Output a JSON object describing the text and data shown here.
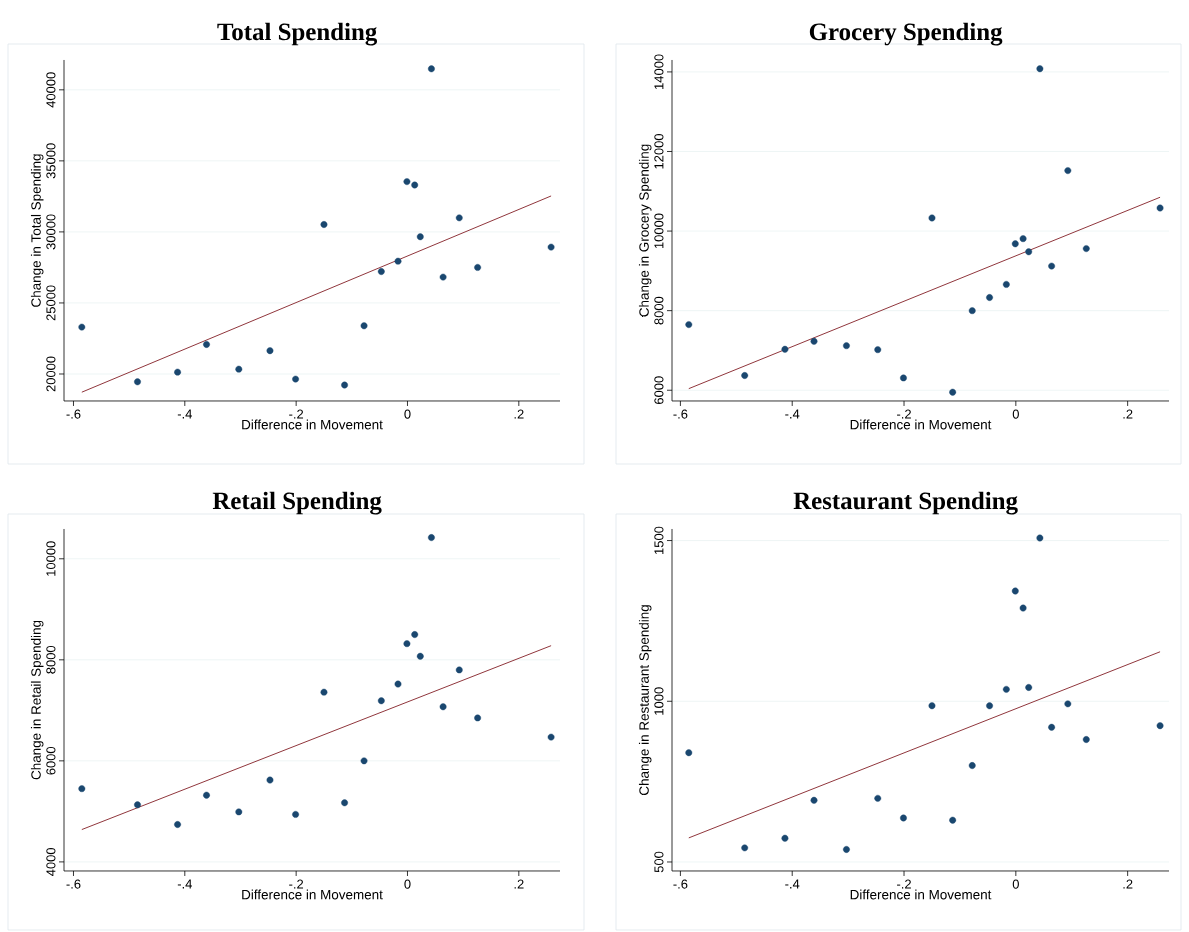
{
  "chart_data": [
    {
      "type": "scatter",
      "title": "Total Spending",
      "xlabel": "Difference in Movement",
      "ylabel": "Change in Total Spending",
      "xlim": [
        -0.617,
        0.274
      ],
      "ylim": [
        18100,
        42100
      ],
      "xticks": [
        {
          "value": -0.6,
          "label": "-.6"
        },
        {
          "value": -0.4,
          "label": "-.4"
        },
        {
          "value": -0.2,
          "label": "-.2"
        },
        0,
        {
          "value": 0.2,
          "label": ".2"
        }
      ],
      "yticks": [
        20000,
        25000,
        30000,
        35000,
        40000
      ],
      "grid": "y",
      "series": [
        {
          "marker": "circle",
          "color": "#1a476f",
          "x": [
            -0.585,
            -0.485,
            -0.413,
            -0.361,
            -0.303,
            -0.247,
            -0.201,
            -0.15,
            -0.113,
            -0.078,
            -0.047,
            -0.017,
            -0.001,
            0.013,
            0.023,
            0.043,
            0.064,
            0.093,
            0.126,
            0.258
          ],
          "values": [
            23300,
            19450,
            20130,
            22080,
            20340,
            21640,
            19640,
            30520,
            19220,
            23390,
            27210,
            27940,
            33540,
            33300,
            29660,
            41480,
            26820,
            30990,
            27500,
            28930
          ]
        },
        {
          "type": "line",
          "marker": "none",
          "color": "#90353b",
          "x": [
            -0.585,
            0.258
          ],
          "values": [
            18720,
            32530
          ]
        }
      ]
    },
    {
      "type": "scatter",
      "title": "Grocery Spending",
      "xlabel": "Difference in Movement",
      "ylabel": "Change in Grocery Spending",
      "xlim": [
        -0.615,
        0.274
      ],
      "ylim": [
        5730,
        14300
      ],
      "xticks": [
        {
          "value": -0.6,
          "label": "-.6"
        },
        {
          "value": -0.4,
          "label": "-.4"
        },
        {
          "value": -0.2,
          "label": "-.2"
        },
        0,
        {
          "value": 0.2,
          "label": ".2"
        }
      ],
      "yticks": [
        6000,
        8000,
        10000,
        12000,
        14000
      ],
      "grid": "y",
      "series": [
        {
          "marker": "circle",
          "color": "#1a476f",
          "x": [
            -0.585,
            -0.485,
            -0.413,
            -0.361,
            -0.303,
            -0.247,
            -0.201,
            -0.15,
            -0.113,
            -0.078,
            -0.047,
            -0.017,
            -0.001,
            0.013,
            0.023,
            0.043,
            0.064,
            0.093,
            0.126,
            0.258
          ],
          "values": [
            7650,
            6370,
            7030,
            7230,
            7120,
            7020,
            6310,
            10330,
            5950,
            8000,
            8330,
            8660,
            9680,
            9810,
            9480,
            14080,
            9120,
            11520,
            9560,
            10580
          ]
        },
        {
          "type": "line",
          "marker": "none",
          "color": "#90353b",
          "x": [
            -0.585,
            0.258
          ],
          "values": [
            6040,
            10850
          ]
        }
      ]
    },
    {
      "type": "scatter",
      "title": "Retail Spending",
      "xlabel": "Difference in Movement",
      "ylabel": "Change in Retail Spending",
      "xlim": [
        -0.617,
        0.274
      ],
      "ylim": [
        3820,
        10590
      ],
      "xticks": [
        {
          "value": -0.6,
          "label": "-.6"
        },
        {
          "value": -0.4,
          "label": "-.4"
        },
        {
          "value": -0.2,
          "label": "-.2"
        },
        0,
        {
          "value": 0.2,
          "label": ".2"
        }
      ],
      "yticks": [
        4000,
        6000,
        8000,
        10000
      ],
      "grid": "y",
      "series": [
        {
          "marker": "circle",
          "color": "#1a476f",
          "x": [
            -0.585,
            -0.485,
            -0.413,
            -0.361,
            -0.303,
            -0.247,
            -0.201,
            -0.15,
            -0.113,
            -0.078,
            -0.047,
            -0.017,
            -0.001,
            0.013,
            0.023,
            0.043,
            0.064,
            0.093,
            0.126,
            0.258
          ],
          "values": [
            5450,
            5130,
            4740,
            5320,
            4990,
            5620,
            4940,
            7360,
            5170,
            6000,
            7190,
            7520,
            8320,
            8500,
            8070,
            10420,
            7070,
            7800,
            6850,
            6470
          ]
        },
        {
          "type": "line",
          "marker": "none",
          "color": "#90353b",
          "x": [
            -0.585,
            0.258
          ],
          "values": [
            4640,
            8280
          ]
        }
      ]
    },
    {
      "type": "scatter",
      "title": "Restaurant Spending",
      "xlabel": "Difference in Movement",
      "ylabel": "Change in Restaurant Spending",
      "xlim": [
        -0.615,
        0.274
      ],
      "ylim": [
        472,
        1536
      ],
      "xticks": [
        {
          "value": -0.6,
          "label": "-.6"
        },
        {
          "value": -0.4,
          "label": "-.4"
        },
        {
          "value": -0.2,
          "label": "-.2"
        },
        0,
        {
          "value": 0.2,
          "label": ".2"
        }
      ],
      "yticks": [
        500,
        1000,
        1500
      ],
      "grid": "y",
      "series": [
        {
          "marker": "circle",
          "color": "#1a476f",
          "x": [
            -0.585,
            -0.485,
            -0.413,
            -0.361,
            -0.303,
            -0.247,
            -0.201,
            -0.15,
            -0.113,
            -0.078,
            -0.047,
            -0.017,
            -0.001,
            0.013,
            0.023,
            0.043,
            0.064,
            0.093,
            0.126,
            0.258
          ],
          "values": [
            840,
            544,
            574,
            692,
            539,
            698,
            637,
            986,
            630,
            800,
            986,
            1037,
            1343,
            1290,
            1043,
            1508,
            919,
            992,
            881,
            924
          ]
        },
        {
          "type": "line",
          "marker": "none",
          "color": "#90353b",
          "x": [
            -0.585,
            0.258
          ],
          "values": [
            575,
            1154
          ]
        }
      ]
    }
  ]
}
